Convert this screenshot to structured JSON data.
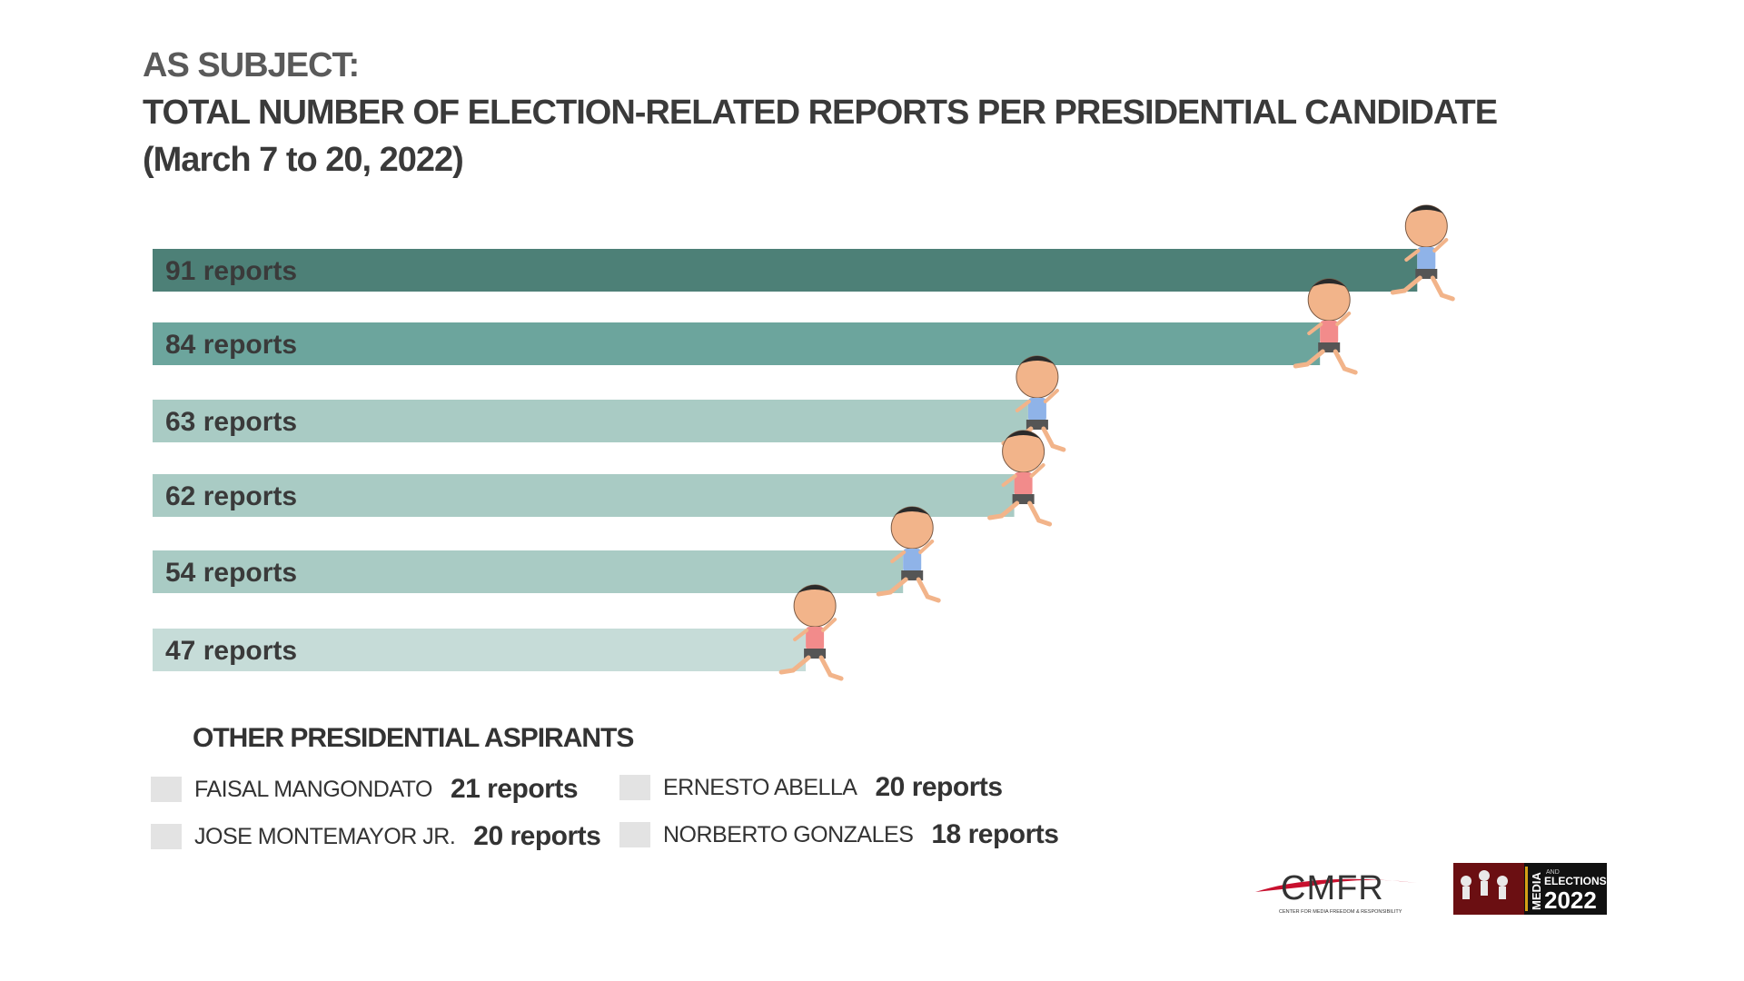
{
  "title": {
    "line1": "AS SUBJECT:",
    "line2": "TOTAL NUMBER OF ELECTION-RELATED REPORTS PER PRESIDENTIAL CANDIDATE",
    "line3": "(March 7 to 20, 2022)"
  },
  "chart_data": {
    "type": "bar",
    "orientation": "horizontal",
    "unit": "reports",
    "values": [
      91,
      84,
      63,
      62,
      54,
      47
    ],
    "labels": [
      "91 reports",
      "84  reports",
      "63 reports",
      "62 reports",
      "54 reports",
      "47 reports"
    ],
    "colors": [
      "#4d8077",
      "#6ca59d",
      "#a9cbc4",
      "#a9cbc4",
      "#a9cbc4",
      "#c6dcd8"
    ],
    "xlim": [
      0,
      100
    ],
    "grid": false
  },
  "others": {
    "title": "OTHER PRESIDENTIAL ASPIRANTS",
    "items": [
      {
        "name": "FAISAL MANGONDATO",
        "count": "21 reports"
      },
      {
        "name": "ERNESTO ABELLA",
        "count": "20 reports"
      },
      {
        "name": "JOSE MONTEMAYOR JR.",
        "count": "20 reports"
      },
      {
        "name": "NORBERTO GONZALES",
        "count": "18 reports"
      }
    ],
    "swatch_color": "#e3e3e3"
  },
  "logos": {
    "cmfr": {
      "text": "CMFR",
      "subtitle": "CENTER FOR MEDIA FREEDOM & RESPONSIBILITY"
    },
    "media_elections": {
      "media": "MEDIA",
      "and": "AND",
      "elections": "ELECTIONS",
      "year": "2022"
    }
  },
  "icons": [
    "runner-icon"
  ],
  "colors": {
    "runner_skin": "#f2b48a",
    "runner_shorts": "#555555"
  }
}
